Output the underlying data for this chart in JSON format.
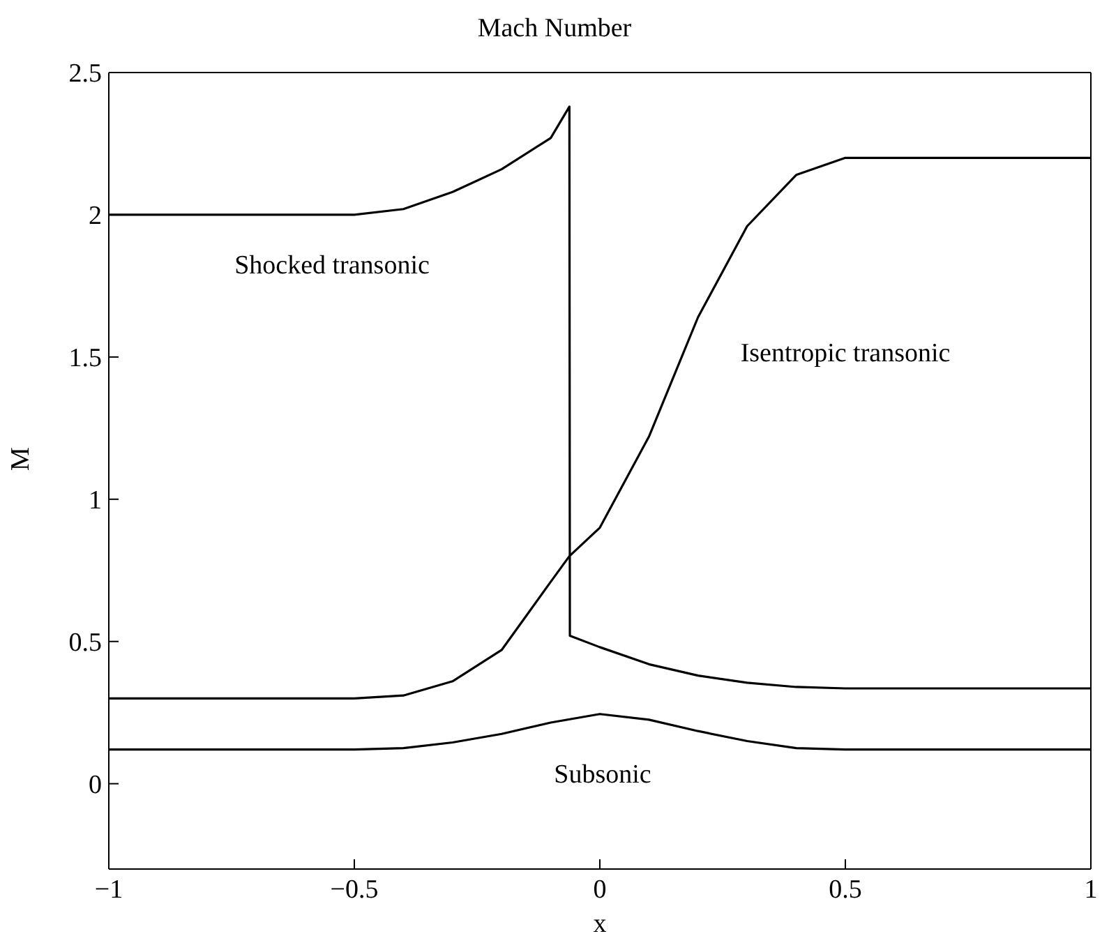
{
  "chart_data": {
    "type": "line",
    "title": "Mach Number",
    "xlabel": "x",
    "ylabel": "M",
    "xlim": [
      -1,
      1
    ],
    "xticks": [
      {
        "value": -1,
        "label": "−1"
      },
      {
        "value": -0.5,
        "label": "−0.5"
      },
      0,
      0.5,
      1
    ],
    "ylim": [
      -0.3,
      2.5
    ],
    "yticks": [
      0,
      0.5,
      1,
      1.5,
      2,
      2.5
    ],
    "grid": false,
    "legend": false,
    "marker": "none",
    "line_style": "solid",
    "series": [
      {
        "name": "Shocked transonic",
        "color": "#000000",
        "x": [
          -1,
          -0.5,
          -0.4,
          -0.3,
          -0.2,
          -0.1,
          -0.062,
          -0.061,
          0,
          0.1,
          0.2,
          0.3,
          0.4,
          0.5,
          1
        ],
        "values": [
          2,
          2,
          2.02,
          2.08,
          2.16,
          2.27,
          2.38,
          0.52,
          0.48,
          0.42,
          0.38,
          0.355,
          0.34,
          0.335,
          0.335
        ]
      },
      {
        "name": "Isentropic transonic",
        "color": "#000000",
        "x": [
          -1,
          -0.5,
          -0.4,
          -0.3,
          -0.2,
          -0.1,
          -0.062,
          0,
          0.1,
          0.2,
          0.3,
          0.4,
          0.5,
          1
        ],
        "values": [
          0.3,
          0.3,
          0.31,
          0.36,
          0.47,
          0.71,
          0.8,
          0.9,
          1.22,
          1.64,
          1.96,
          2.14,
          2.2,
          2.2
        ]
      },
      {
        "name": "Subsonic",
        "color": "#000000",
        "x": [
          -1,
          -0.5,
          -0.4,
          -0.3,
          -0.2,
          -0.1,
          0,
          0.1,
          0.2,
          0.3,
          0.4,
          0.5,
          1
        ],
        "values": [
          0.12,
          0.12,
          0.125,
          0.145,
          0.175,
          0.215,
          0.245,
          0.225,
          0.185,
          0.15,
          0.125,
          0.12,
          0.12
        ]
      }
    ]
  }
}
